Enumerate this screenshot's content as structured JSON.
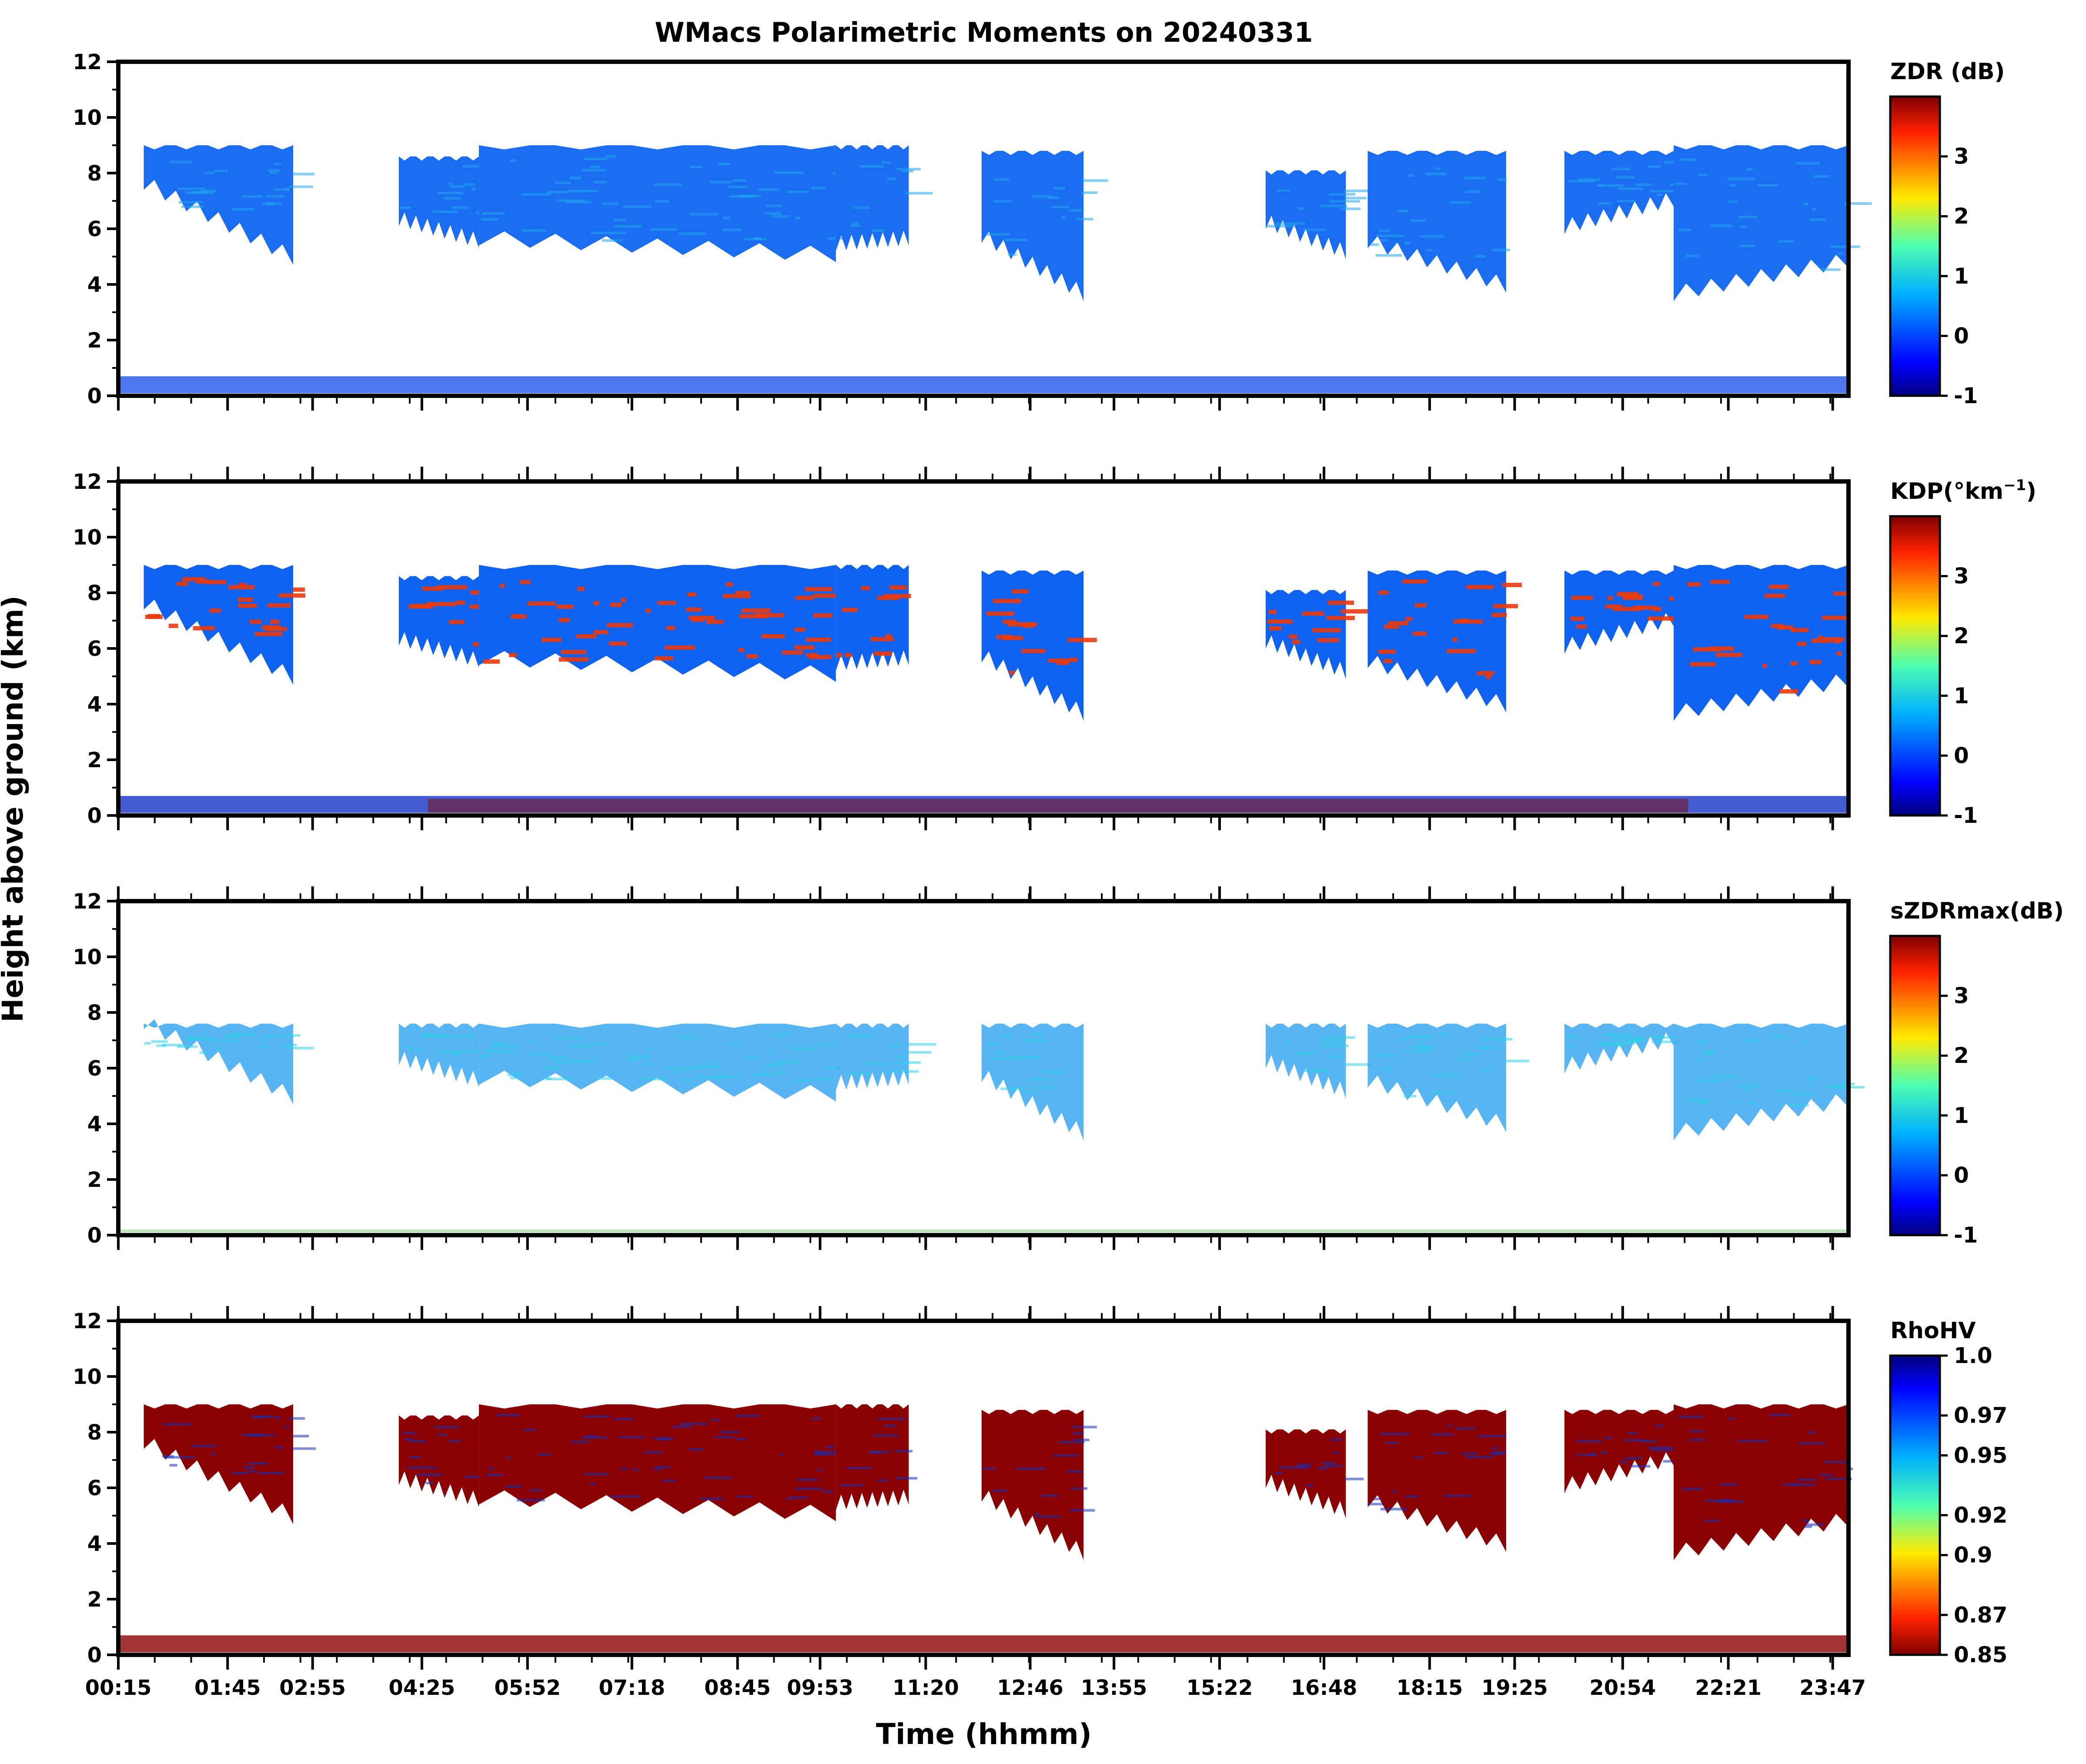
{
  "chart_data": {
    "type": "heatmap",
    "title": "WMacs Polarimetric Moments on 20240331",
    "xlabel": "Time (hhmm)",
    "ylabel": "Height above ground (km)",
    "x_tick_labels": [
      "00:15",
      "01:45",
      "02:55",
      "04:25",
      "05:52",
      "07:18",
      "08:45",
      "09:53",
      "11:20",
      "12:46",
      "13:55",
      "15:22",
      "16:48",
      "18:15",
      "19:25",
      "20:54",
      "22:21",
      "23:47"
    ],
    "x_tick_hours": [
      0.25,
      1.75,
      2.917,
      4.417,
      5.867,
      7.3,
      8.75,
      9.883,
      11.333,
      12.767,
      13.917,
      15.367,
      16.8,
      18.25,
      19.417,
      20.9,
      22.35,
      23.783
    ],
    "xlim_hours": [
      0.25,
      24.0
    ],
    "ylim": [
      0,
      12
    ],
    "y_ticks": [
      0,
      2,
      4,
      6,
      8,
      10,
      12
    ],
    "colormap": "jet",
    "panels": [
      {
        "name": "ZDR",
        "colorbar_label": "ZDR (dB)",
        "colorbar_range": [
          -1,
          4
        ],
        "colorbar_ticks": [
          "-1",
          "0",
          "1",
          "2",
          "3"
        ],
        "colorbar_reversed": false,
        "cloud_color": "#1a6cf0",
        "accent_color": "#22a6f2",
        "ground_color": "#1f55e8"
      },
      {
        "name": "KDP",
        "colorbar_label": "KDP(°km",
        "colorbar_label_sup": "−1",
        "colorbar_label_close": ")",
        "colorbar_range": [
          -1,
          4
        ],
        "colorbar_ticks": [
          "-1",
          "0",
          "1",
          "2",
          "3"
        ],
        "colorbar_reversed": false,
        "cloud_color": "#0f62f0",
        "accent_color": "#e83a10",
        "ground_color": "#1432c8"
      },
      {
        "name": "sZDRmax",
        "colorbar_label": "sZDRmax(dB)",
        "colorbar_range": [
          -1,
          4
        ],
        "colorbar_ticks": [
          "-1",
          "0",
          "1",
          "2",
          "3"
        ],
        "colorbar_reversed": false,
        "cloud_color": "#38a8f0",
        "accent_color": "#2fd0e8",
        "ground_color": "#4caf50"
      },
      {
        "name": "RhoHV",
        "colorbar_label": "RhoHV",
        "colorbar_range": [
          0.85,
          1.0
        ],
        "colorbar_ticks": [
          "0.85",
          "0.87",
          "0.9",
          "0.92",
          "0.95",
          "0.97",
          "1.0"
        ],
        "colorbar_reversed": true,
        "cloud_color": "#8b0000",
        "accent_color": "#1a2fb0",
        "ground_color": "#8b0000"
      }
    ],
    "cloud_segments_hours_km": [
      {
        "t0": 0.6,
        "t1": 2.65,
        "top": 9.0,
        "base_start": 7.6,
        "base_end": 4.9
      },
      {
        "t0": 4.1,
        "t1": 5.2,
        "top": 8.6,
        "base_start": 6.3,
        "base_end": 5.5
      },
      {
        "t0": 5.2,
        "t1": 10.1,
        "top": 9.0,
        "base_start": 5.6,
        "base_end": 5.0
      },
      {
        "t0": 10.1,
        "t1": 11.1,
        "top": 9.0,
        "base_start": 5.4,
        "base_end": 5.6
      },
      {
        "t0": 12.1,
        "t1": 13.5,
        "top": 8.8,
        "base_start": 5.7,
        "base_end": 3.6
      },
      {
        "t0": 16.0,
        "t1": 17.1,
        "top": 8.1,
        "base_start": 6.2,
        "base_end": 5.1
      },
      {
        "t0": 17.4,
        "t1": 19.3,
        "top": 8.8,
        "base_start": 5.5,
        "base_end": 3.9
      },
      {
        "t0": 20.1,
        "t1": 21.6,
        "top": 8.8,
        "base_start": 6.0,
        "base_end": 7.0
      },
      {
        "t0": 21.6,
        "t1": 24.0,
        "top": 9.0,
        "base_start": 3.6,
        "base_end": 4.8
      }
    ]
  }
}
